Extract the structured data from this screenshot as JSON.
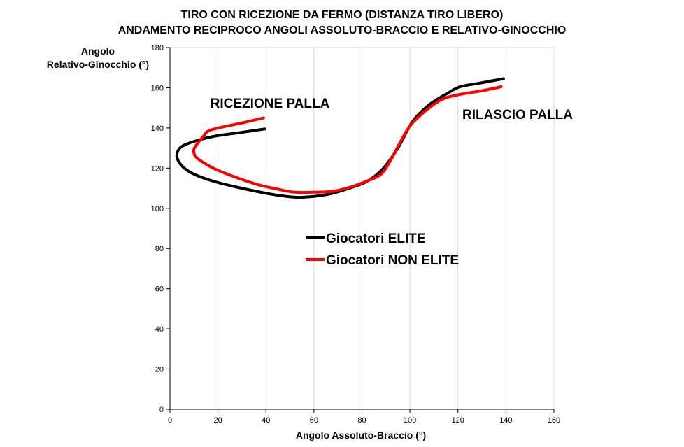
{
  "chart_data": {
    "type": "line",
    "title_line1": "TIRO CON RICEZIONE DA FERMO (DISTANZA TIRO LIBERO)",
    "title_line2": "ANDAMENTO RECIPROCO ANGOLI ASSOLUTO-BRACCIO E  RELATIVO-GINOCCHIO",
    "xlabel": "Angolo Assoluto-Braccio (°)",
    "ylabel_line1": "Angolo",
    "ylabel_line2": "Relativo-Ginocchio (°)",
    "xlim": [
      0,
      160
    ],
    "ylim": [
      0,
      180
    ],
    "xticks": [
      "0",
      "20",
      "40",
      "60",
      "80",
      "100",
      "120",
      "140",
      "160"
    ],
    "yticks": [
      "0",
      "20",
      "40",
      "60",
      "80",
      "100",
      "120",
      "140",
      "160",
      "180"
    ],
    "grid": "vertical",
    "legend_position": "center",
    "annotations": [
      "RICEZIONE PALLA",
      "RILASCIO PALLA"
    ],
    "series": [
      {
        "name": "Giocatori ELITE",
        "color": "#000000",
        "points": [
          [
            39.5,
            139.5
          ],
          [
            28,
            137.5
          ],
          [
            19,
            136
          ],
          [
            12,
            134
          ],
          [
            6,
            131.5
          ],
          [
            3.5,
            129
          ],
          [
            3,
            125
          ],
          [
            5.5,
            120.5
          ],
          [
            10,
            117
          ],
          [
            18,
            113.5
          ],
          [
            28,
            110.5
          ],
          [
            40,
            107.5
          ],
          [
            48,
            106
          ],
          [
            55,
            105.5
          ],
          [
            66,
            107
          ],
          [
            76,
            110.5
          ],
          [
            83,
            114
          ],
          [
            89,
            120
          ],
          [
            95,
            130
          ],
          [
            101,
            143
          ],
          [
            108,
            151.5
          ],
          [
            116,
            157.5
          ],
          [
            121,
            160.5
          ],
          [
            130,
            162.5
          ],
          [
            139,
            164.5
          ]
        ]
      },
      {
        "name": "Giocatori NON ELITE",
        "color": "#ff0000",
        "points": [
          [
            39,
            145
          ],
          [
            30,
            142.5
          ],
          [
            22,
            140.5
          ],
          [
            16,
            138.5
          ],
          [
            14,
            136
          ],
          [
            12,
            133
          ],
          [
            10,
            129.5
          ],
          [
            10.5,
            126
          ],
          [
            13,
            123.5
          ],
          [
            18,
            120
          ],
          [
            25,
            116.5
          ],
          [
            36,
            112
          ],
          [
            45,
            109.5
          ],
          [
            52,
            108
          ],
          [
            60,
            108
          ],
          [
            68,
            108.5
          ],
          [
            75,
            110.5
          ],
          [
            82,
            113.5
          ],
          [
            88,
            117
          ],
          [
            92,
            124
          ],
          [
            96,
            133
          ],
          [
            100,
            141
          ],
          [
            106,
            148
          ],
          [
            113,
            154
          ],
          [
            120,
            156.5
          ],
          [
            130,
            158.5
          ],
          [
            138,
            160.5
          ]
        ]
      }
    ]
  }
}
